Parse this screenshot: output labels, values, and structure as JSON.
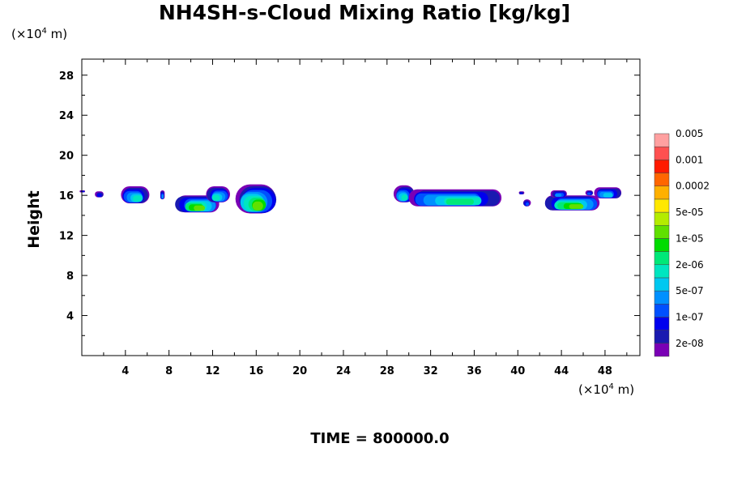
{
  "chart_data": {
    "type": "heatmap",
    "title": "NH4SH-s-Cloud Mixing Ratio [kg/kg]",
    "ylabel": "Height",
    "x_unit": {
      "prefix": "(×10",
      "exp": "4",
      "suffix": " m)"
    },
    "y_unit": {
      "prefix": "(×10",
      "exp": "4",
      "suffix": " m)"
    },
    "time_label": "TIME = 800000.0",
    "xlim": [
      0,
      51.2
    ],
    "ylim": [
      0,
      29.6
    ],
    "x_ticks": [
      4,
      8,
      12,
      16,
      20,
      24,
      28,
      32,
      36,
      40,
      44,
      48
    ],
    "y_ticks": [
      4,
      8,
      12,
      16,
      20,
      24,
      28
    ],
    "grid": false,
    "colorbar": {
      "levels": [
        "2e-08",
        "1e-07",
        "5e-07",
        "2e-06",
        "1e-05",
        "5e-05",
        "0.0002",
        "0.001",
        "0.005"
      ],
      "colors": [
        "#7a00b5",
        "#1a1ab0",
        "#0000ee",
        "#0050ff",
        "#0090ff",
        "#00c8f0",
        "#00e6c0",
        "#00e878",
        "#00dc00",
        "#60e000",
        "#b4ec00",
        "#ffe800",
        "#ffb000",
        "#ff6600",
        "#ff1a00",
        "#ff5050",
        "#ffa0a0"
      ]
    },
    "clouds": [
      {
        "x": [
          -0.2,
          0.3
        ],
        "y": [
          16.3,
          16.5
        ],
        "level": 2
      },
      {
        "x": [
          1.2,
          2.0
        ],
        "y": [
          15.8,
          16.4
        ],
        "level": 2
      },
      {
        "x": [
          3.6,
          6.2
        ],
        "y": [
          15.2,
          16.9
        ],
        "level": 6
      },
      {
        "x": [
          7.2,
          7.6
        ],
        "y": [
          15.6,
          16.5
        ],
        "level": 4
      },
      {
        "x": [
          8.7,
          12.6
        ],
        "y": [
          14.3,
          16.0
        ],
        "level": 9
      },
      {
        "x": [
          11.4,
          13.6
        ],
        "y": [
          15.3,
          16.9
        ],
        "level": 6
      },
      {
        "x": [
          14.1,
          17.8
        ],
        "y": [
          14.2,
          17.1
        ],
        "level": 9
      },
      {
        "x": [
          28.6,
          30.5
        ],
        "y": [
          15.3,
          17.0
        ],
        "level": 6
      },
      {
        "x": [
          30.0,
          38.5
        ],
        "y": [
          14.9,
          16.6
        ],
        "level": 7
      },
      {
        "x": [
          40.1,
          40.6
        ],
        "y": [
          16.1,
          16.4
        ],
        "level": 2
      },
      {
        "x": [
          40.5,
          41.2
        ],
        "y": [
          14.9,
          15.6
        ],
        "level": 3
      },
      {
        "x": [
          42.5,
          47.5
        ],
        "y": [
          14.5,
          16.0
        ],
        "level": 9
      },
      {
        "x": [
          43.0,
          44.5
        ],
        "y": [
          15.8,
          16.5
        ],
        "level": 4
      },
      {
        "x": [
          46.2,
          46.9
        ],
        "y": [
          16.0,
          16.5
        ],
        "level": 3
      },
      {
        "x": [
          47.0,
          49.5
        ],
        "y": [
          15.7,
          16.8
        ],
        "level": 5
      }
    ]
  }
}
